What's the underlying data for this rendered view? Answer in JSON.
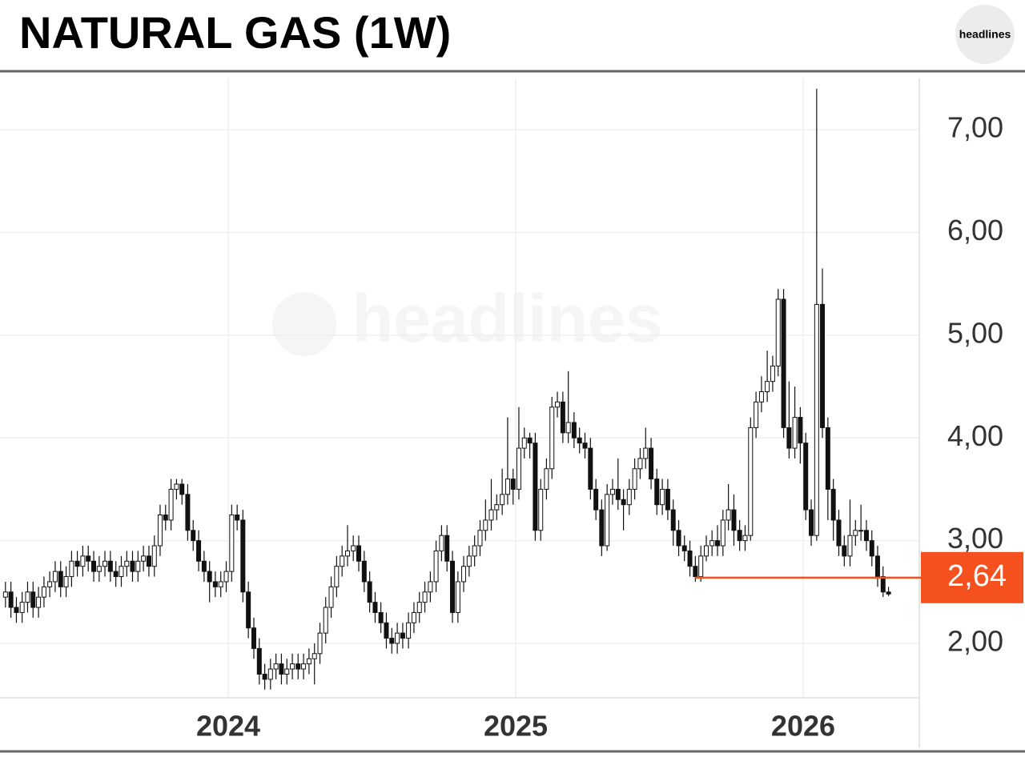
{
  "chart_data": {
    "type": "candlestick",
    "title": "NATURAL GAS (1W)",
    "logo": "headlines",
    "watermark": "headlines",
    "up_color": "#ffffff",
    "down_color": "#111111",
    "grid": true,
    "xlim": [
      2023.206,
      2026.404
    ],
    "xticks": [
      2024,
      2025,
      2026
    ],
    "ylim": [
      1.47,
      7.5
    ],
    "yticks": [
      {
        "value": 2,
        "label": "2,00"
      },
      {
        "value": 3,
        "label": "3,00"
      },
      {
        "value": 4,
        "label": "4,00"
      },
      {
        "value": 5,
        "label": "5,00"
      },
      {
        "value": 6,
        "label": "6,00"
      },
      {
        "value": 7,
        "label": "7,00"
      }
    ],
    "price_line": {
      "value": 2.64,
      "label": "2,64",
      "x_start": 2025.625,
      "color": "#f4511e"
    },
    "x": [
      2023.225,
      2023.244,
      2023.263,
      2023.283,
      2023.302,
      2023.321,
      2023.34,
      2023.359,
      2023.379,
      2023.398,
      2023.417,
      2023.436,
      2023.455,
      2023.475,
      2023.494,
      2023.513,
      2023.532,
      2023.551,
      2023.571,
      2023.59,
      2023.609,
      2023.628,
      2023.647,
      2023.667,
      2023.686,
      2023.705,
      2023.724,
      2023.743,
      2023.763,
      2023.782,
      2023.801,
      2023.82,
      2023.839,
      2023.859,
      2023.878,
      2023.897,
      2023.916,
      2023.935,
      2023.955,
      2023.974,
      2023.993,
      2024.012,
      2024.031,
      2024.051,
      2024.07,
      2024.089,
      2024.108,
      2024.127,
      2024.147,
      2024.166,
      2024.185,
      2024.204,
      2024.223,
      2024.243,
      2024.262,
      2024.281,
      2024.3,
      2024.319,
      2024.339,
      2024.358,
      2024.377,
      2024.396,
      2024.415,
      2024.435,
      2024.454,
      2024.473,
      2024.492,
      2024.511,
      2024.531,
      2024.55,
      2024.569,
      2024.588,
      2024.607,
      2024.627,
      2024.646,
      2024.665,
      2024.684,
      2024.703,
      2024.723,
      2024.742,
      2024.761,
      2024.78,
      2024.799,
      2024.819,
      2024.838,
      2024.857,
      2024.876,
      2024.895,
      2024.915,
      2024.934,
      2024.953,
      2024.972,
      2024.991,
      2025.011,
      2025.03,
      2025.049,
      2025.068,
      2025.087,
      2025.107,
      2025.126,
      2025.145,
      2025.164,
      2025.183,
      2025.203,
      2025.222,
      2025.241,
      2025.26,
      2025.279,
      2025.299,
      2025.318,
      2025.337,
      2025.356,
      2025.375,
      2025.395,
      2025.414,
      2025.433,
      2025.452,
      2025.471,
      2025.491,
      2025.51,
      2025.529,
      2025.548,
      2025.567,
      2025.587,
      2025.606,
      2025.625,
      2025.644,
      2025.663,
      2025.683,
      2025.702,
      2025.721,
      2025.74,
      2025.759,
      2025.779,
      2025.798,
      2025.817,
      2025.836,
      2025.855,
      2025.875,
      2025.894,
      2025.913,
      2025.932,
      2025.951,
      2025.971,
      2025.99,
      2026.009,
      2026.028,
      2026.047,
      2026.067,
      2026.086,
      2026.105,
      2026.124,
      2026.143,
      2026.163,
      2026.182,
      2026.201,
      2026.22,
      2026.239,
      2026.259,
      2026.278,
      2026.297
    ],
    "open": [
      2.45,
      2.5,
      2.35,
      2.3,
      2.4,
      2.5,
      2.35,
      2.45,
      2.55,
      2.6,
      2.7,
      2.55,
      2.65,
      2.8,
      2.75,
      2.85,
      2.8,
      2.7,
      2.75,
      2.8,
      2.7,
      2.65,
      2.75,
      2.8,
      2.7,
      2.8,
      2.85,
      2.75,
      2.95,
      3.25,
      3.2,
      3.5,
      3.55,
      3.45,
      3.1,
      3.0,
      2.8,
      2.7,
      2.6,
      2.55,
      2.6,
      2.7,
      3.25,
      3.2,
      2.5,
      2.15,
      1.95,
      1.7,
      1.65,
      1.75,
      1.8,
      1.7,
      1.75,
      1.8,
      1.75,
      1.8,
      1.85,
      1.9,
      2.1,
      2.35,
      2.55,
      2.75,
      2.85,
      2.9,
      2.95,
      2.8,
      2.6,
      2.4,
      2.3,
      2.2,
      2.05,
      2.0,
      2.1,
      2.05,
      2.2,
      2.3,
      2.4,
      2.5,
      2.6,
      2.9,
      3.05,
      2.8,
      2.3,
      2.6,
      2.75,
      2.85,
      2.95,
      3.1,
      3.2,
      3.3,
      3.35,
      3.45,
      3.6,
      3.5,
      3.9,
      4.0,
      3.95,
      3.1,
      3.5,
      3.7,
      4.3,
      4.35,
      4.05,
      4.15,
      4.0,
      3.95,
      3.9,
      3.5,
      3.3,
      2.95,
      3.45,
      3.5,
      3.4,
      3.35,
      3.5,
      3.7,
      3.8,
      3.9,
      3.6,
      3.35,
      3.5,
      3.3,
      3.1,
      2.95,
      2.9,
      2.75,
      2.65,
      2.85,
      2.95,
      3.0,
      2.95,
      3.2,
      3.3,
      3.1,
      3.0,
      3.05,
      4.1,
      4.35,
      4.45,
      4.55,
      4.7,
      5.35,
      4.1,
      3.9,
      4.2,
      3.95,
      3.3,
      3.05,
      5.3,
      4.1,
      3.5,
      3.2,
      2.95,
      2.85,
      3.05,
      3.1,
      3.1,
      3.0,
      2.85,
      2.65,
      2.5
    ],
    "high": [
      2.6,
      2.6,
      2.45,
      2.5,
      2.6,
      2.6,
      2.55,
      2.65,
      2.7,
      2.8,
      2.8,
      2.75,
      2.9,
      2.9,
      2.95,
      2.95,
      2.9,
      2.85,
      2.9,
      2.9,
      2.8,
      2.85,
      2.9,
      2.9,
      2.9,
      2.95,
      2.95,
      3.05,
      3.35,
      3.35,
      3.6,
      3.6,
      3.6,
      3.55,
      3.2,
      3.1,
      2.9,
      2.8,
      2.7,
      2.7,
      2.8,
      3.35,
      3.35,
      3.3,
      2.6,
      2.25,
      2.05,
      1.8,
      1.85,
      1.9,
      1.9,
      1.85,
      1.9,
      1.9,
      1.9,
      1.95,
      2.0,
      2.2,
      2.45,
      2.65,
      2.85,
      2.95,
      3.15,
      3.05,
      3.05,
      2.9,
      2.7,
      2.5,
      2.4,
      2.3,
      2.15,
      2.2,
      2.2,
      2.3,
      2.4,
      2.5,
      2.6,
      2.7,
      3.0,
      3.15,
      3.15,
      2.9,
      2.7,
      2.85,
      2.95,
      3.05,
      3.2,
      3.4,
      3.6,
      3.45,
      3.7,
      4.2,
      3.7,
      4.3,
      4.1,
      4.05,
      4.05,
      3.6,
      3.8,
      4.4,
      4.45,
      4.45,
      4.65,
      4.25,
      4.1,
      4.05,
      4.0,
      3.6,
      3.4,
      3.55,
      3.6,
      3.8,
      3.5,
      3.6,
      3.8,
      3.9,
      4.1,
      4.0,
      3.7,
      3.6,
      3.6,
      3.4,
      3.2,
      3.05,
      3.0,
      2.85,
      2.95,
      3.05,
      3.1,
      3.15,
      3.3,
      3.55,
      3.45,
      3.2,
      3.15,
      4.2,
      4.45,
      4.6,
      4.85,
      4.8,
      5.45,
      5.45,
      4.55,
      4.5,
      4.3,
      4.05,
      3.4,
      7.4,
      5.65,
      4.2,
      3.6,
      3.3,
      3.05,
      3.4,
      3.2,
      3.35,
      3.2,
      3.1,
      2.95,
      2.75,
      2.55
    ],
    "low": [
      2.35,
      2.25,
      2.2,
      2.2,
      2.3,
      2.25,
      2.25,
      2.35,
      2.45,
      2.5,
      2.45,
      2.45,
      2.55,
      2.65,
      2.65,
      2.7,
      2.6,
      2.6,
      2.65,
      2.6,
      2.55,
      2.55,
      2.65,
      2.6,
      2.6,
      2.7,
      2.65,
      2.65,
      2.85,
      3.1,
      3.1,
      3.4,
      3.35,
      3.0,
      2.9,
      2.7,
      2.6,
      2.4,
      2.45,
      2.45,
      2.5,
      2.6,
      3.1,
      2.4,
      2.05,
      1.85,
      1.6,
      1.55,
      1.55,
      1.65,
      1.6,
      1.6,
      1.65,
      1.65,
      1.65,
      1.7,
      1.6,
      1.8,
      2.0,
      2.25,
      2.45,
      2.65,
      2.75,
      2.8,
      2.7,
      2.5,
      2.3,
      2.2,
      2.1,
      1.95,
      1.9,
      1.9,
      1.95,
      1.95,
      2.1,
      2.2,
      2.3,
      2.4,
      2.5,
      2.8,
      2.7,
      2.2,
      2.2,
      2.5,
      2.65,
      2.75,
      2.85,
      3.0,
      3.1,
      3.2,
      3.25,
      3.35,
      3.35,
      3.4,
      3.8,
      3.8,
      3.0,
      3.0,
      3.4,
      3.6,
      4.2,
      3.95,
      3.95,
      3.9,
      3.85,
      3.8,
      3.4,
      3.2,
      2.85,
      2.9,
      3.35,
      3.3,
      3.1,
      3.25,
      3.4,
      3.6,
      3.7,
      3.5,
      3.25,
      3.25,
      3.2,
      2.95,
      2.85,
      2.8,
      2.65,
      2.6,
      2.6,
      2.8,
      2.85,
      2.85,
      2.85,
      3.1,
      2.95,
      2.9,
      2.9,
      3.0,
      4.0,
      4.25,
      4.35,
      4.45,
      4.6,
      4.0,
      3.8,
      3.8,
      3.75,
      3.2,
      2.95,
      3.0,
      4.0,
      3.2,
      3.0,
      2.85,
      2.75,
      2.75,
      2.95,
      3.0,
      2.9,
      2.75,
      2.55,
      2.45,
      2.46
    ],
    "close": [
      2.5,
      2.35,
      2.3,
      2.4,
      2.5,
      2.35,
      2.45,
      2.55,
      2.6,
      2.7,
      2.55,
      2.65,
      2.8,
      2.75,
      2.85,
      2.8,
      2.7,
      2.75,
      2.8,
      2.7,
      2.65,
      2.75,
      2.8,
      2.7,
      2.8,
      2.85,
      2.75,
      2.95,
      3.25,
      3.2,
      3.5,
      3.55,
      3.45,
      3.1,
      3.0,
      2.8,
      2.7,
      2.6,
      2.55,
      2.6,
      2.7,
      3.25,
      3.2,
      2.5,
      2.15,
      1.95,
      1.7,
      1.65,
      1.75,
      1.8,
      1.7,
      1.75,
      1.8,
      1.75,
      1.8,
      1.85,
      1.9,
      2.1,
      2.35,
      2.55,
      2.75,
      2.85,
      2.9,
      2.95,
      2.8,
      2.6,
      2.4,
      2.3,
      2.2,
      2.05,
      2.0,
      2.1,
      2.05,
      2.2,
      2.3,
      2.4,
      2.5,
      2.6,
      2.9,
      3.05,
      2.8,
      2.3,
      2.6,
      2.75,
      2.85,
      2.95,
      3.1,
      3.2,
      3.3,
      3.35,
      3.45,
      3.6,
      3.5,
      3.9,
      4.0,
      3.95,
      3.1,
      3.5,
      3.7,
      4.3,
      4.35,
      4.05,
      4.15,
      4.0,
      3.95,
      3.9,
      3.5,
      3.3,
      2.95,
      3.45,
      3.5,
      3.4,
      3.35,
      3.5,
      3.7,
      3.8,
      3.9,
      3.6,
      3.35,
      3.5,
      3.3,
      3.1,
      2.95,
      2.9,
      2.75,
      2.65,
      2.85,
      2.95,
      3.0,
      2.95,
      3.2,
      3.3,
      3.1,
      3.0,
      3.05,
      4.1,
      4.35,
      4.45,
      4.55,
      4.7,
      5.35,
      4.1,
      3.9,
      4.2,
      3.95,
      3.3,
      3.05,
      5.3,
      4.1,
      3.5,
      3.2,
      2.95,
      2.85,
      3.05,
      3.1,
      3.1,
      3.0,
      2.85,
      2.65,
      2.5,
      2.48
    ]
  }
}
